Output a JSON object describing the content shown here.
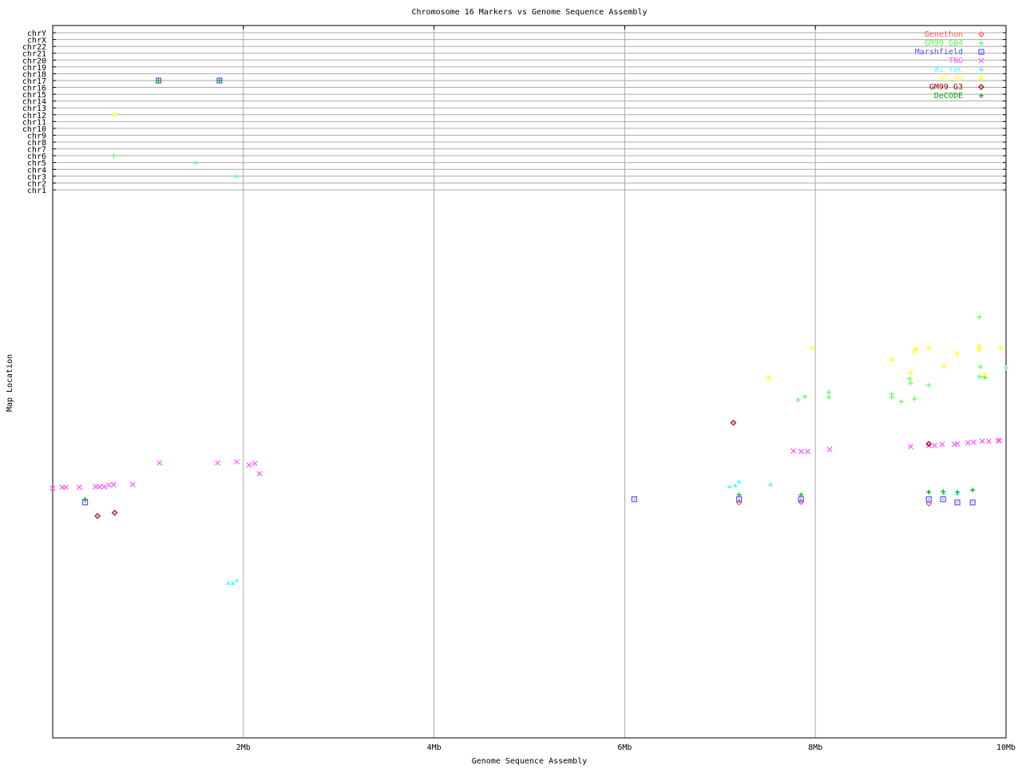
{
  "chart_data": {
    "type": "scatter",
    "title": "Chromosome 16 Markers vs Genome Sequence Assembly",
    "xlabel": "Genome Sequence Assembly",
    "ylabel": "Map Location",
    "xlim": [
      0,
      10
    ],
    "x_unit": "Mb",
    "x_ticks": [
      "2Mb",
      "4Mb",
      "6Mb",
      "8Mb",
      "10Mb"
    ],
    "x_tick_values": [
      2,
      4,
      6,
      8,
      10
    ],
    "ylim_map_location": [
      0,
      100
    ],
    "grid": true,
    "legend_position": "top-right",
    "chromosome_rows": [
      "chr1",
      "chr2",
      "chr3",
      "chr4",
      "chr5",
      "chr6",
      "chr7",
      "chr8",
      "chr9",
      "chr10",
      "chr11",
      "chr12",
      "chr13",
      "chr14",
      "chr15",
      "chr16",
      "chr17",
      "chr18",
      "chr19",
      "chr20",
      "chr21",
      "chr22",
      "chrX",
      "chrY"
    ],
    "series": [
      {
        "name": "Genethon",
        "color": "#ff5555",
        "marker": "diamond",
        "points": [
          [
            7.2,
            43.4
          ],
          [
            7.85,
            43.5
          ],
          [
            9.19,
            43.2
          ]
        ],
        "chr_points": []
      },
      {
        "name": "GM99 GB4",
        "color": "#55ff55",
        "marker": "plus",
        "points": [
          [
            9.72,
            77.6
          ],
          [
            7.82,
            62.3
          ],
          [
            7.89,
            62.9
          ],
          [
            8.14,
            63.7
          ],
          [
            8.14,
            62.8
          ],
          [
            8.8,
            63.4
          ],
          [
            8.8,
            62.8
          ],
          [
            8.9,
            62.0
          ],
          [
            8.99,
            66.2
          ],
          [
            9.0,
            65.4
          ],
          [
            9.04,
            62.5
          ],
          [
            9.19,
            65.0
          ],
          [
            9.73,
            68.4
          ],
          [
            9.72,
            66.6
          ],
          [
            9.77,
            66.6
          ],
          [
            9.78,
            66.4
          ],
          [
            10.0,
            68.2
          ]
        ],
        "chr_points": [
          [
            0.64,
            "chr6"
          ],
          [
            1.75,
            "chr17"
          ]
        ]
      },
      {
        "name": "Marshfield",
        "color": "#5555ff",
        "marker": "square",
        "points": [
          [
            0.34,
            43.4
          ],
          [
            6.1,
            44.0
          ],
          [
            7.2,
            44.0
          ],
          [
            7.85,
            44.0
          ],
          [
            9.19,
            44.0
          ],
          [
            9.34,
            44.0
          ],
          [
            9.49,
            43.4
          ],
          [
            9.65,
            43.4
          ]
        ],
        "chr_points": [
          [
            1.11,
            "chr17"
          ],
          [
            1.75,
            "chr17"
          ]
        ]
      },
      {
        "name": "TNG",
        "color": "#ff55ff",
        "marker": "cross",
        "points": [
          [
            0,
            46.0
          ],
          [
            0.1,
            46.2
          ],
          [
            0.14,
            46.2
          ],
          [
            0.28,
            46.2
          ],
          [
            0.45,
            46.3
          ],
          [
            0.49,
            46.3
          ],
          [
            0.54,
            46.3
          ],
          [
            0.59,
            46.6
          ],
          [
            0.64,
            46.7
          ],
          [
            0.84,
            46.7
          ],
          [
            1.12,
            50.7
          ],
          [
            1.73,
            50.7
          ],
          [
            1.93,
            50.9
          ],
          [
            2.06,
            50.3
          ],
          [
            2.12,
            50.6
          ],
          [
            2.17,
            48.7
          ],
          [
            7.77,
            52.9
          ],
          [
            7.85,
            52.8
          ],
          [
            7.92,
            52.8
          ],
          [
            8.15,
            53.2
          ],
          [
            9.0,
            53.7
          ],
          [
            9.19,
            53.9
          ],
          [
            9.25,
            53.9
          ],
          [
            9.33,
            54.1
          ],
          [
            9.46,
            54.1
          ],
          [
            9.49,
            54.2
          ],
          [
            9.6,
            54.4
          ],
          [
            9.66,
            54.5
          ],
          [
            9.75,
            54.7
          ],
          [
            9.82,
            54.7
          ],
          [
            9.92,
            54.8
          ],
          [
            9.93,
            54.8
          ]
        ],
        "chr_points": []
      },
      {
        "name": "WI YAC",
        "color": "#55ffff",
        "marker": "triangle",
        "points": [
          [
            1.84,
            28.5
          ],
          [
            1.89,
            28.5
          ],
          [
            1.93,
            29.0
          ],
          [
            7.1,
            46.3
          ],
          [
            7.16,
            46.5
          ],
          [
            7.2,
            47.2
          ],
          [
            7.53,
            46.7
          ],
          [
            9.19,
            45.4
          ],
          [
            9.35,
            45.1
          ],
          [
            9.49,
            45.0
          ]
        ],
        "chr_points": [
          [
            1.5,
            "chr5"
          ],
          [
            1.93,
            "chr3"
          ]
        ]
      },
      {
        "name": "WI RH",
        "color": "#ffff55",
        "marker": "star",
        "points": [
          [
            7.51,
            66.3
          ],
          [
            7.97,
            71.9
          ],
          [
            8.8,
            69.8
          ],
          [
            9.04,
            71.3
          ],
          [
            9.06,
            71.7
          ],
          [
            9.19,
            71.9
          ],
          [
            9.35,
            68.5
          ],
          [
            9.49,
            70.9
          ],
          [
            9.0,
            67.3
          ],
          [
            9.72,
            72.2
          ],
          [
            9.72,
            71.6
          ],
          [
            9.95,
            71.9
          ],
          [
            9.78,
            67.0
          ]
        ],
        "chr_points": [
          [
            0.65,
            "chr12"
          ]
        ]
      },
      {
        "name": "GM99 G3",
        "color": "#aa0000",
        "marker": "diamond",
        "points": [
          [
            0.47,
            40.9
          ],
          [
            0.65,
            41.5
          ],
          [
            7.14,
            58.1
          ],
          [
            9.19,
            54.2
          ]
        ],
        "chr_points": []
      },
      {
        "name": "DeCODE",
        "color": "#00aa00",
        "marker": "plus",
        "points": [
          [
            0.34,
            44.0
          ],
          [
            7.2,
            44.8
          ],
          [
            7.85,
            44.8
          ],
          [
            9.19,
            45.3
          ],
          [
            9.34,
            45.4
          ],
          [
            9.49,
            45.3
          ],
          [
            9.65,
            45.7
          ]
        ],
        "chr_points": [
          [
            1.11,
            "chr17"
          ],
          [
            1.75,
            "chr17"
          ]
        ]
      }
    ]
  }
}
